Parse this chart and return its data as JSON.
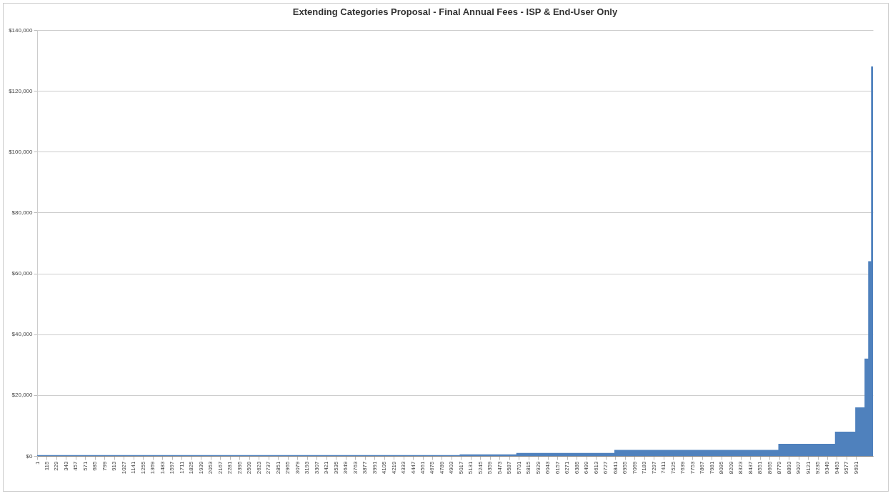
{
  "chart_data": {
    "type": "area",
    "title": "Extending Categories Proposal - Final Annual Fees - ISP & End-User Only",
    "x": [
      1,
      5000,
      5000,
      5670,
      5670,
      6830,
      6830,
      8770,
      8770,
      9440,
      9440,
      9680,
      9680,
      9790,
      9790,
      9833,
      9833,
      9867,
      9867,
      9890
    ],
    "series": [
      {
        "color": "#4f81bd",
        "values": [
          300,
          300,
          500,
          500,
          1000,
          1000,
          2000,
          2000,
          4000,
          4000,
          8000,
          8000,
          16000,
          16000,
          32000,
          32000,
          64000,
          64000,
          128000,
          128000
        ]
      }
    ],
    "xlim": [
      1,
      9890
    ],
    "xticks": [
      1,
      115,
      229,
      343,
      457,
      571,
      685,
      799,
      913,
      1027,
      1141,
      1255,
      1369,
      1483,
      1597,
      1711,
      1825,
      1939,
      2053,
      2167,
      2281,
      2395,
      2509,
      2623,
      2737,
      2851,
      2965,
      3079,
      3193,
      3307,
      3421,
      3535,
      3649,
      3763,
      3877,
      3991,
      4105,
      4219,
      4333,
      4447,
      4561,
      4675,
      4789,
      4903,
      5017,
      5131,
      5245,
      5359,
      5473,
      5587,
      5701,
      5815,
      5929,
      6043,
      6157,
      6271,
      6385,
      6499,
      6613,
      6727,
      6841,
      6955,
      7069,
      7183,
      7297,
      7411,
      7525,
      7639,
      7753,
      7867,
      7981,
      8095,
      8209,
      8323,
      8437,
      8551,
      8665,
      8779,
      8893,
      9007,
      9121,
      9235,
      9349,
      9463,
      9577,
      9691
    ],
    "ylim": [
      0,
      140000
    ],
    "yticks": [
      {
        "value": 0,
        "label": "$0"
      },
      {
        "value": 20000,
        "label": "$20,000"
      },
      {
        "value": 40000,
        "label": "$40,000"
      },
      {
        "value": 60000,
        "label": "$60,000"
      },
      {
        "value": 80000,
        "label": "$80,000"
      },
      {
        "value": 100000,
        "label": "$100,000"
      },
      {
        "value": 120000,
        "label": "$120,000"
      },
      {
        "value": 140000,
        "label": "$140,000"
      }
    ],
    "grid": "y"
  }
}
